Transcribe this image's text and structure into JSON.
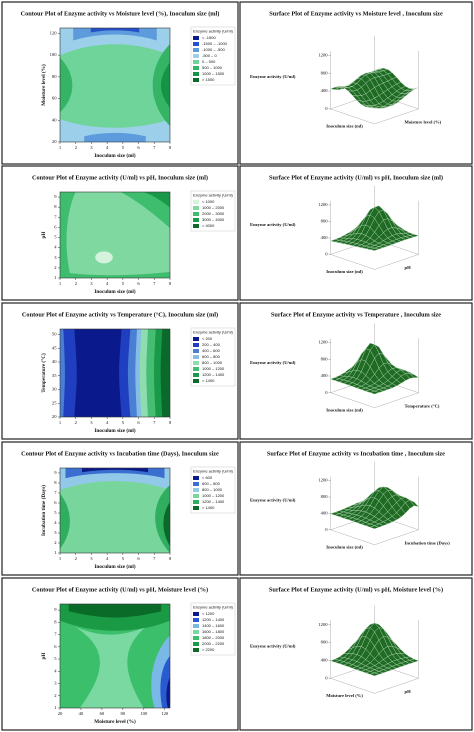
{
  "chart_data": [
    {
      "type": "contour",
      "title": "Contour Plot of Enzyme activity vs Moisture level (%), Inoculum size (ml)",
      "xlabel": "Inoculum size (ml)",
      "ylabel": "Moisture level (%)",
      "xlim": [
        1,
        8
      ],
      "xticks": [
        1,
        2,
        3,
        4,
        5,
        6,
        7,
        8
      ],
      "ylim": [
        20,
        125
      ],
      "yticks": [
        20,
        40,
        60,
        80,
        100,
        120
      ],
      "legend_title": "Enzyme activity (U/ml)",
      "levels": [
        {
          "label": "< -1500",
          "color": "#0a1a8c"
        },
        {
          "label": "-1500 – -1000",
          "color": "#2450c8"
        },
        {
          "label": "-1000 – -500",
          "color": "#5d9bdc"
        },
        {
          "label": "-500 – 0",
          "color": "#9cd0ea"
        },
        {
          "label": "0 – 500",
          "color": "#6fd49a"
        },
        {
          "label": "500 – 1000",
          "color": "#35b466"
        },
        {
          "label": "1000 – 1500",
          "color": "#159445"
        },
        {
          "label": "> 1500",
          "color": "#0a6a2a"
        }
      ]
    },
    {
      "type": "surface",
      "title": "Surface Plot of Enzyme activity  vs Moisture level , Inoculum size",
      "zlabel": "Enzyme activity (U/ml)",
      "xlabel": "Inoculum size (ml)",
      "ylabel": "Moisture level (%)",
      "zlim": [
        0,
        1300
      ],
      "zticks": [
        0,
        400,
        800,
        1200
      ]
    },
    {
      "type": "contour",
      "title": "Contour Plot of Enzyme activity (U/ml) vs pH, Inoculum size (ml)",
      "xlabel": "Inoculum size (ml)",
      "ylabel": "pH",
      "xlim": [
        1,
        8
      ],
      "xticks": [
        1,
        2,
        3,
        4,
        5,
        6,
        7,
        8
      ],
      "ylim": [
        1,
        9.5
      ],
      "yticks": [
        1,
        2,
        3,
        4,
        5,
        6,
        7,
        8,
        9
      ],
      "legend_title": "Enzyme activity (U/ml)",
      "levels": [
        {
          "label": "< 1000",
          "color": "#d3f3dd"
        },
        {
          "label": "1000 – 2000",
          "color": "#7fd8a0"
        },
        {
          "label": "2000 – 3000",
          "color": "#3fbd6e"
        },
        {
          "label": "3000 – 4000",
          "color": "#199848"
        },
        {
          "label": "> 4000",
          "color": "#0b6a2a"
        }
      ]
    },
    {
      "type": "surface",
      "title": "Surface Plot of Enzyme activity (U/ml) vs pH, Inoculum size (ml)",
      "zlabel": "Enzyme activity (U/ml)",
      "xlabel": "Inoculum size (ml)",
      "ylabel": "pH",
      "zlim": [
        0,
        1300
      ],
      "zticks": [
        0,
        400,
        800,
        1200
      ]
    },
    {
      "type": "contour",
      "title": "Contour Plot of Enzyme activity vs Temperature (°C), Inoculum size (ml)",
      "xlabel": "Inoculum size (ml)",
      "ylabel": "Temperature (°C)",
      "xlim": [
        1,
        8
      ],
      "xticks": [
        1,
        2,
        3,
        4,
        5,
        6,
        7,
        8
      ],
      "ylim": [
        20,
        52
      ],
      "yticks": [
        20,
        25,
        30,
        35,
        40,
        45,
        50
      ],
      "legend_title": "Enzyme activity (U/ml)",
      "levels": [
        {
          "label": "< 200",
          "color": "#0a1a8c"
        },
        {
          "label": "200 – 400",
          "color": "#1f3fc0"
        },
        {
          "label": "400 – 600",
          "color": "#4a7fd4"
        },
        {
          "label": "600 – 800",
          "color": "#86bde6"
        },
        {
          "label": "800 – 1000",
          "color": "#8fdcae"
        },
        {
          "label": "1000 – 1200",
          "color": "#45bd72"
        },
        {
          "label": "1200 – 1400",
          "color": "#1a9a49"
        },
        {
          "label": "> 1400",
          "color": "#0a6a2a"
        }
      ]
    },
    {
      "type": "surface",
      "title": "Surface Plot of Enzyme activity  vs Temperature , Inoculum size",
      "zlabel": "Enzyme activity (U/ml)",
      "xlabel": "Inoculum size (ml)",
      "ylabel": "Temperature (°C)",
      "zlim": [
        0,
        1300
      ],
      "zticks": [
        0,
        400,
        800,
        1200
      ]
    },
    {
      "type": "contour",
      "title": "Contour Plot of Enzyme activity vs Incubation time (Days), Inoculum size",
      "xlabel": "Inoculum size (ml)",
      "ylabel": "Incubation time (Days)",
      "xlim": [
        1,
        8
      ],
      "xticks": [
        1,
        2,
        3,
        4,
        5,
        6,
        7,
        8
      ],
      "ylim": [
        1,
        9.5
      ],
      "yticks": [
        1,
        2,
        3,
        4,
        5,
        6,
        7,
        8,
        9
      ],
      "legend_title": "Enzyme activity (U/ml)",
      "levels": [
        {
          "label": "< 600",
          "color": "#0a1a8c"
        },
        {
          "label": "600 – 800",
          "color": "#3a6fd0"
        },
        {
          "label": "800 – 1000",
          "color": "#92c8e8"
        },
        {
          "label": "1000 – 1200",
          "color": "#78d69c"
        },
        {
          "label": "1200 – 1400",
          "color": "#2fae5f"
        },
        {
          "label": "> 1400",
          "color": "#0b6a2a"
        }
      ]
    },
    {
      "type": "surface",
      "title": "Surface Plot of Enzyme activity  vs Incubation time , Inoculum size",
      "zlabel": "Enzyme activity (U/ml)",
      "xlabel": "Inoculum size (ml)",
      "ylabel": "Incubation time (Days)",
      "zlim": [
        0,
        1300
      ],
      "zticks": [
        0,
        400,
        800,
        1200
      ]
    },
    {
      "type": "contour",
      "title": "Contour Plot of Enzyme activity (U/ml) vs pH, Moisture level (%)",
      "xlabel": "Moisture level (%)",
      "ylabel": "pH",
      "xlim": [
        20,
        125
      ],
      "xticks": [
        20,
        40,
        60,
        80,
        100,
        120
      ],
      "ylim": [
        1,
        9.5
      ],
      "yticks": [
        1,
        2,
        3,
        4,
        5,
        6,
        7,
        8,
        9
      ],
      "legend_title": "Enzyme activity (U/ml)",
      "levels": [
        {
          "label": "< 1200",
          "color": "#0a1a8c"
        },
        {
          "label": "1200 – 1400",
          "color": "#2a5ad0"
        },
        {
          "label": "1400 – 1600",
          "color": "#7ab8e8"
        },
        {
          "label": "1600 – 1800",
          "color": "#7ad9a0"
        },
        {
          "label": "1800 – 2000",
          "color": "#3cbf6a"
        },
        {
          "label": "2000 – 2200",
          "color": "#1a9a45"
        },
        {
          "label": "> 2200",
          "color": "#0a6b28"
        }
      ]
    },
    {
      "type": "surface",
      "title": "Surface Plot of Enzyme activity (U/ml) vs pH, Moisture level (%)",
      "zlabel": "Enzyme activity (U/ml)",
      "xlabel": "Moisture level (%)",
      "ylabel": "pH",
      "zlim": [
        0,
        1300
      ],
      "zticks": [
        0,
        400,
        800,
        1200
      ]
    }
  ]
}
